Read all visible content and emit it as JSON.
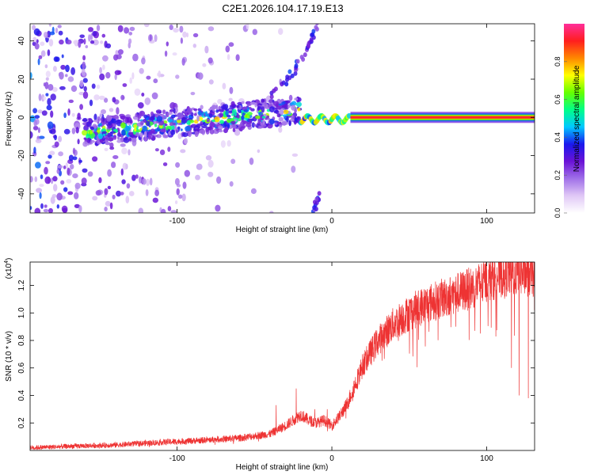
{
  "figure_title": "C2E1.2026.104.17.19.E13",
  "chart_data": [
    {
      "type": "heatmap",
      "description_label": "spectrogram",
      "xlabel": "Height of straight line (km)",
      "ylabel": "Frequency (Hz)",
      "xlim": [
        -195,
        131
      ],
      "ylim": [
        -50,
        49
      ],
      "xticks": [
        -100,
        0,
        100
      ],
      "xtick_labels": [
        "-100",
        "0",
        "100"
      ],
      "yticks": [
        -40,
        -20,
        0,
        20,
        40
      ],
      "ytick_labels": [
        "-40",
        "-20",
        "0",
        "20",
        "40"
      ],
      "grid": false,
      "colorbar": {
        "label": "Normalized spectral amplitude",
        "range": [
          0,
          1
        ],
        "ticks": [
          0.0,
          0.2,
          0.4,
          0.6,
          0.8
        ],
        "tick_labels": [
          "0.0",
          "0.2",
          "0.4",
          "0.6",
          "0.8"
        ],
        "colormap": [
          "#ffffff",
          "#e0c8f6",
          "#a070e8",
          "#6a12d6",
          "#1a18ee",
          "#00c8ff",
          "#00ff88",
          "#66ff00",
          "#ffff00",
          "#ff8800",
          "#ff1e1e",
          "#ff2e9a"
        ]
      },
      "features": {
        "scatter_band": {
          "x_range": [
            -195,
            -20
          ],
          "f_range": [
            -50,
            49
          ],
          "peak_amplitude": 0.25
        },
        "noisy_trace": {
          "x_range": [
            -160,
            -20
          ],
          "f_center_start": -8,
          "f_center_end": 4,
          "peak_amplitude": 0.45
        },
        "transition": {
          "x_range": [
            -20,
            12
          ],
          "f_center": -1,
          "peak_amplitude": 0.7
        },
        "stable_line": {
          "x_range": [
            12,
            131
          ],
          "f_center": 0,
          "amplitude": 0.92
        },
        "upper_branch": {
          "x": [
            -40,
            -30,
            -25,
            -20,
            -15,
            -12,
            -10
          ],
          "f": [
            12,
            18,
            24,
            30,
            38,
            44,
            49
          ]
        },
        "lower_branch": {
          "x": [
            -12,
            -10,
            -8
          ],
          "f": [
            -49,
            -44,
            -40
          ]
        }
      }
    },
    {
      "type": "line",
      "description_label": "snr",
      "xlabel": "Height of straight line (km)",
      "ylabel": "SNR (10 * v/v)",
      "y_multiplier_label": "(x10",
      "y_multiplier_exponent": "4",
      "xlim": [
        -195,
        131
      ],
      "ylim": [
        0,
        1.37
      ],
      "xticks": [
        -100,
        0,
        100
      ],
      "xtick_labels": [
        "-100",
        "0",
        "100"
      ],
      "yticks": [
        0.2,
        0.4,
        0.6,
        0.8,
        1.0,
        1.2
      ],
      "ytick_labels": [
        "0.2",
        "0.4",
        "0.6",
        "0.8",
        "1.0",
        "1.2"
      ],
      "grid": false,
      "series": [
        {
          "name": "SNR",
          "color": "#ee3333",
          "envelope_x": [
            -195,
            -170,
            -140,
            -110,
            -90,
            -60,
            -40,
            -30,
            -25,
            -20,
            -15,
            -10,
            -5,
            0,
            5,
            10,
            15,
            20,
            30,
            40,
            50,
            60,
            70,
            80,
            90,
            100,
            110,
            120,
            131
          ],
          "envelope_y": [
            0.02,
            0.03,
            0.04,
            0.06,
            0.07,
            0.09,
            0.12,
            0.18,
            0.22,
            0.26,
            0.22,
            0.2,
            0.22,
            0.18,
            0.25,
            0.34,
            0.48,
            0.62,
            0.8,
            0.92,
            1.0,
            1.06,
            1.1,
            1.14,
            1.18,
            1.24,
            1.28,
            1.29,
            1.28
          ],
          "spikes": [
            [
              -36,
              0.33
            ],
            [
              -23,
              0.45
            ],
            [
              -11,
              0.3
            ],
            [
              -3,
              0.3
            ],
            [
              8,
              0.28
            ],
            [
              18,
              0.5
            ],
            [
              24,
              0.78
            ],
            [
              45,
              1.05
            ],
            [
              65,
              1.1
            ],
            [
              88,
              1.2
            ],
            [
              108,
              1.35
            ],
            [
              125,
              1.34
            ],
            [
              131,
              1.36
            ]
          ],
          "dips": [
            [
              121,
              0.4
            ],
            [
              127,
              0.38
            ],
            [
              116,
              0.6
            ],
            [
              96,
              0.85
            ],
            [
              80,
              0.9
            ]
          ]
        }
      ]
    }
  ]
}
